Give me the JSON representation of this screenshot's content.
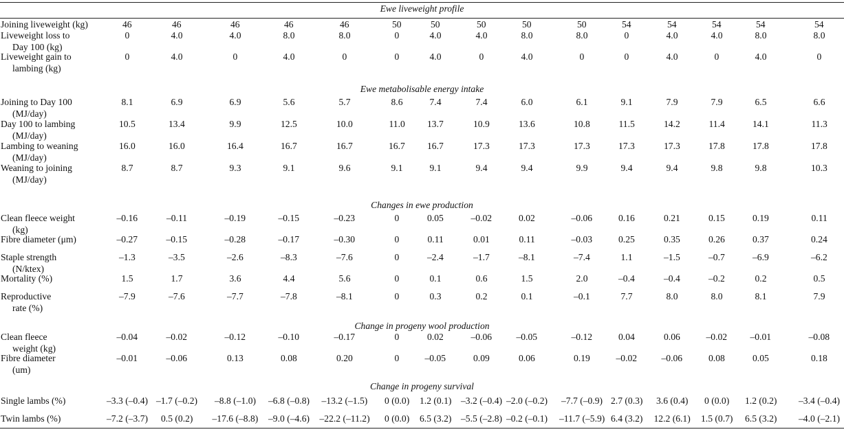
{
  "table": {
    "sections": [
      {
        "title": "Ewe liveweight profile",
        "rows": [
          {
            "label": [
              "Joining liveweight (kg)"
            ],
            "values": [
              "46",
              "46",
              "46",
              "46",
              "46",
              "50",
              "50",
              "50",
              "50",
              "50",
              "54",
              "54",
              "54",
              "54",
              "54"
            ]
          },
          {
            "label": [
              "Liveweight loss to",
              "Day 100 (kg)"
            ],
            "values": [
              "0",
              "4.0",
              "4.0",
              "8.0",
              "8.0",
              "0",
              "4.0",
              "4.0",
              "8.0",
              "8.0",
              "0",
              "4.0",
              "4.0",
              "8.0",
              "8.0"
            ]
          },
          {
            "label": [
              "Liveweight gain to",
              "lambing (kg)"
            ],
            "values": [
              "0",
              "4.0",
              "0",
              "4.0",
              "0",
              "0",
              "4.0",
              "0",
              "4.0",
              "0",
              "0",
              "4.0",
              "0",
              "4.0",
              "0"
            ]
          }
        ]
      },
      {
        "title": "Ewe metabolisable energy intake",
        "rows": [
          {
            "label": [
              "Joining to Day 100",
              "(MJ/day)"
            ],
            "values": [
              "8.1",
              "6.9",
              "6.9",
              "5.6",
              "5.7",
              "8.6",
              "7.4",
              "7.4",
              "6.0",
              "6.1",
              "9.1",
              "7.9",
              "7.9",
              "6.5",
              "6.6"
            ]
          },
          {
            "label": [
              "Day 100 to lambing",
              "(MJ/day)"
            ],
            "values": [
              "10.5",
              "13.4",
              "9.9",
              "12.5",
              "10.0",
              "11.0",
              "13.7",
              "10.9",
              "13.6",
              "10.8",
              "11.5",
              "14.2",
              "11.4",
              "14.1",
              "11.3"
            ]
          },
          {
            "label": [
              "Lambing to weaning",
              "(MJ/day)"
            ],
            "values": [
              "16.0",
              "16.0",
              "16.4",
              "16.7",
              "16.7",
              "16.7",
              "16.7",
              "17.3",
              "17.3",
              "17.3",
              "17.3",
              "17.3",
              "17.8",
              "17.8",
              "17.8"
            ]
          },
          {
            "label": [
              "Weaning to joining",
              "(MJ/day)"
            ],
            "values": [
              "8.7",
              "8.7",
              "9.3",
              "9.1",
              "9.6",
              "9.1",
              "9.1",
              "9.4",
              "9.4",
              "9.9",
              "9.4",
              "9.4",
              "9.8",
              "9.8",
              "10.3"
            ]
          }
        ]
      },
      {
        "title": "Changes in ewe production",
        "rows": [
          {
            "label": [
              "Clean fleece weight",
              "(kg)"
            ],
            "values": [
              "–0.16",
              "–0.11",
              "–0.19",
              "–0.15",
              "–0.23",
              "0",
              "0.05",
              "–0.02",
              "0.02",
              "–0.06",
              "0.16",
              "0.21",
              "0.15",
              "0.19",
              "0.11"
            ]
          },
          {
            "label": [
              "Fibre diameter (μm)"
            ],
            "values": [
              "–0.27",
              "–0.15",
              "–0.28",
              "–0.17",
              "–0.30",
              "0",
              "0.11",
              "0.01",
              "0.11",
              "–0.03",
              "0.25",
              "0.35",
              "0.26",
              "0.37",
              "0.24"
            ]
          },
          {
            "label": [
              "Staple strength",
              "(N/ktex)"
            ],
            "values": [
              "–1.3",
              "–3.5",
              "–2.6",
              "–8.3",
              "–7.6",
              "0",
              "–2.4",
              "–1.7",
              "–8.1",
              "–7.4",
              "1.1",
              "–1.5",
              "–0.7",
              "–6.9",
              "–6.2"
            ]
          },
          {
            "label": [
              "Mortality (%)"
            ],
            "values": [
              "1.5",
              "1.7",
              "3.6",
              "4.4",
              "5.6",
              "0",
              "0.1",
              "0.6",
              "1.5",
              "2.0",
              "–0.4",
              "–0.4",
              "–0.2",
              "0.2",
              "0.5"
            ]
          },
          {
            "label": [
              "Reproductive",
              "rate (%)"
            ],
            "values": [
              "–7.9",
              "–7.6",
              "–7.7",
              "–7.8",
              "–8.1",
              "0",
              "0.3",
              "0.2",
              "0.1",
              "–0.1",
              "7.7",
              "8.0",
              "8.0",
              "8.1",
              "7.9"
            ]
          }
        ]
      },
      {
        "title": "Change in progeny wool production",
        "rows": [
          {
            "label": [
              "Clean fleece",
              "weight (kg)"
            ],
            "values": [
              "–0.04",
              "–0.02",
              "–0.12",
              "–0.10",
              "–0.17",
              "0",
              "0.02",
              "–0.06",
              "–0.05",
              "–0.12",
              "0.04",
              "0.06",
              "–0.02",
              "–0.01",
              "–0.08"
            ]
          },
          {
            "label": [
              "Fibre diameter",
              "(um)"
            ],
            "values": [
              "–0.01",
              "–0.06",
              "0.13",
              "0.08",
              "0.20",
              "0",
              "–0.05",
              "0.09",
              "0.06",
              "0.19",
              "–0.02",
              "–0.06",
              "0.08",
              "0.05",
              "0.18"
            ]
          }
        ]
      },
      {
        "title": "Change in progeny survival",
        "rows": [
          {
            "label": [
              "Single lambs (%)"
            ],
            "values": [
              "–3.3 (–0.4)",
              "–1.7 (–0.2)",
              "–8.8 (–1.0)",
              "–6.8 (–0.8)",
              "–13.2 (–1.5)",
              "0 (0.0)",
              "1.2 (0.1)",
              "–3.2 (–0.4)",
              "–2.0 (–0.2)",
              "–7.7 (–0.9)",
              "2.7 (0.3)",
              "3.6 (0.4)",
              "0 (0.0)",
              "1.2 (0.2)",
              "–3.4 (–0.4)"
            ]
          },
          {
            "label": [
              "Twin lambs (%)"
            ],
            "values": [
              "–7.2 (–3.7)",
              "0.5 (0.2)",
              "–17.6 (–8.8)",
              "–9.0 (–4.6)",
              "–22.2 (–11.2)",
              "0 (0.0)",
              "6.5 (3.2)",
              "–5.5 (–2.8)",
              "–0.2 (–0.1)",
              "–11.7 (–5.9)",
              "6.4 (3.2)",
              "12.2 (6.1)",
              "1.5 (0.7)",
              "6.5 (3.2)",
              "–4.0 (–2.1)"
            ]
          }
        ]
      }
    ]
  }
}
